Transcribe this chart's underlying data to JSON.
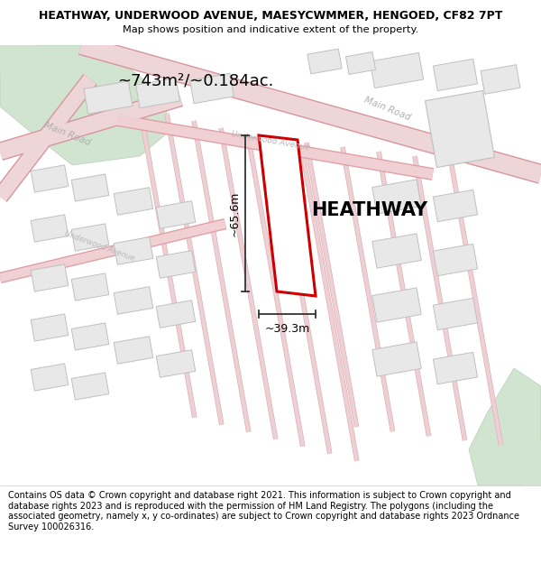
{
  "title_line1": "HEATHWAY, UNDERWOOD AVENUE, MAESYCWMMER, HENGOED, CF82 7PT",
  "title_line2": "Map shows position and indicative extent of the property.",
  "area_text": "~743m²/~0.184ac.",
  "property_label": "HEATHWAY",
  "dim_vertical": "~65.6m",
  "dim_horizontal": "~39.3m",
  "footer_text": "Contains OS data © Crown copyright and database right 2021. This information is subject to Crown copyright and database rights 2023 and is reproduced with the permission of HM Land Registry. The polygons (including the associated geometry, namely x, y co-ordinates) are subject to Crown copyright and database rights 2023 Ordnance Survey 100026316.",
  "map_bg": "#f9f6f3",
  "road_fill": "#f0d0d3",
  "road_edge": "#e0a0a8",
  "major_road_fill": "#edd5d8",
  "major_road_edge": "#d8959f",
  "property_color": "#cc0000",
  "green_color": "#d0e4cf",
  "building_fill": "#e8e8e8",
  "building_edge": "#c0c0c0",
  "dim_line_color": "#333333",
  "road_label_color": "#aaaaaa",
  "title_fontsize": 9.0,
  "subtitle_fontsize": 8.2,
  "label_fontsize": 15,
  "area_fontsize": 13,
  "dim_fontsize": 9,
  "footer_fontsize": 7.0
}
